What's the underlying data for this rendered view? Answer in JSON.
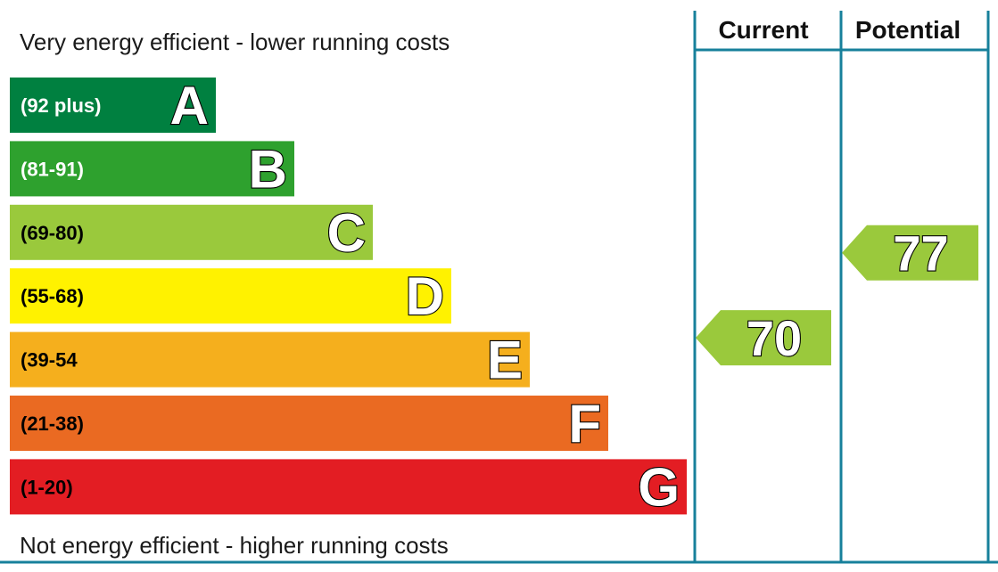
{
  "chart_data": {
    "type": "bar",
    "top_caption": "Very energy efficient - lower running costs",
    "bottom_caption": "Not energy efficient - higher running costs",
    "columns": [
      "Current",
      "Potential"
    ],
    "bands": [
      {
        "letter": "A",
        "range": "(92 plus)",
        "min": 92,
        "max": 100,
        "color": "#008040",
        "text_color": "#ffffff"
      },
      {
        "letter": "B",
        "range": "(81-91)",
        "min": 81,
        "max": 91,
        "color": "#2ea12e",
        "text_color": "#ffffff"
      },
      {
        "letter": "C",
        "range": "(69-80)",
        "min": 69,
        "max": 80,
        "color": "#9ac93c",
        "text_color": "#000000"
      },
      {
        "letter": "D",
        "range": "(55-68)",
        "min": 55,
        "max": 68,
        "color": "#fff200",
        "text_color": "#000000"
      },
      {
        "letter": "E",
        "range": "(39-54",
        "min": 39,
        "max": 54,
        "color": "#f5af1d",
        "text_color": "#000000"
      },
      {
        "letter": "F",
        "range": "(21-38)",
        "min": 21,
        "max": 38,
        "color": "#ea6a22",
        "text_color": "#000000"
      },
      {
        "letter": "G",
        "range": "(1-20)",
        "min": 1,
        "max": 20,
        "color": "#e31d23",
        "text_color": "#000000"
      }
    ],
    "ratings": [
      {
        "column": "Current",
        "value": 70,
        "band": "C",
        "color": "#9ac93c"
      },
      {
        "column": "Potential",
        "value": 77,
        "band": "C",
        "color": "#9ac93c"
      }
    ],
    "border_color": "#17809b"
  }
}
